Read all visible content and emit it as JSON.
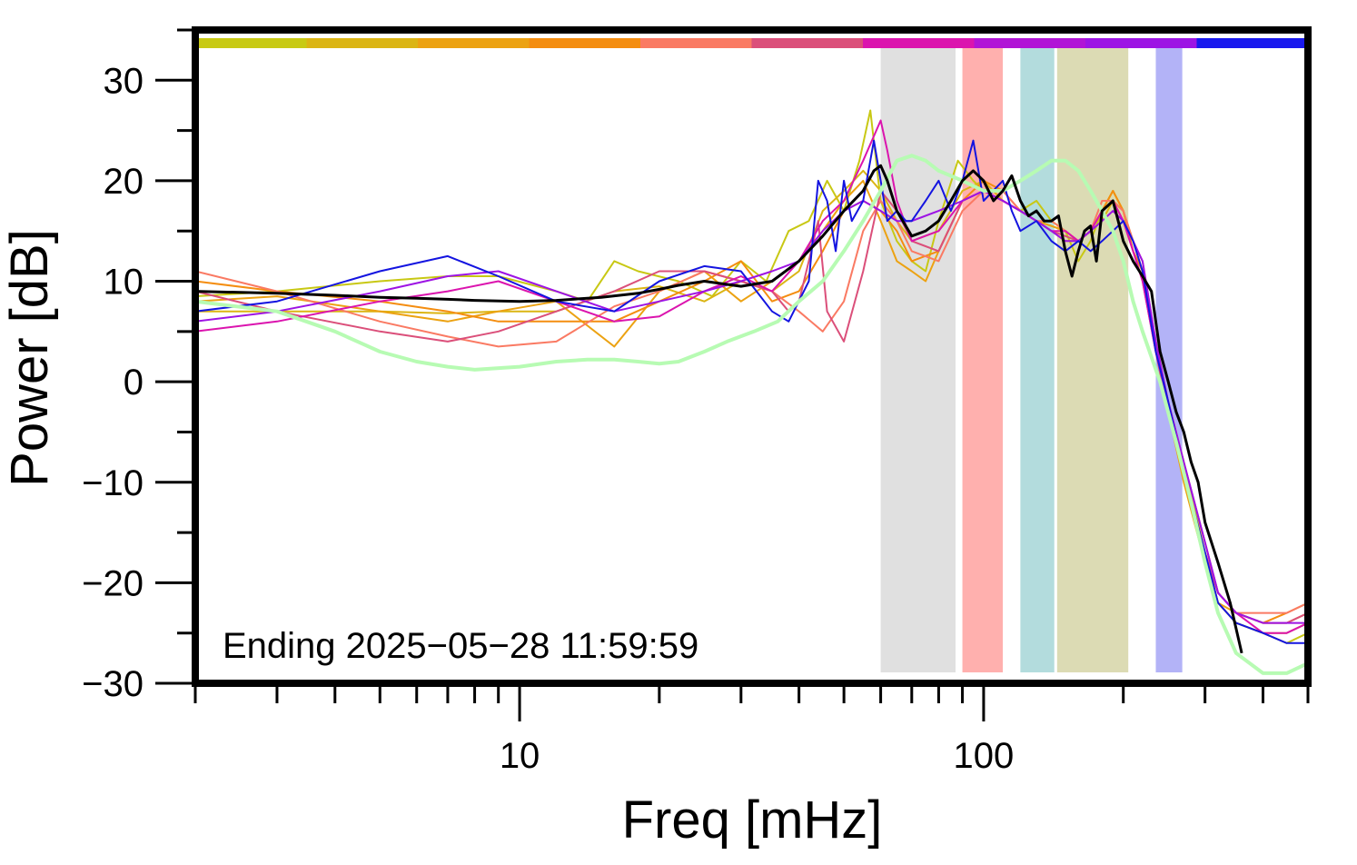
{
  "chart_data": {
    "type": "line",
    "xlabel": "Freq [mHz]",
    "ylabel": "Power [dB]",
    "x_scale": "log",
    "xlim": [
      2,
      500
    ],
    "ylim": [
      -30,
      35
    ],
    "x_tick_labels": [
      {
        "value": 10,
        "label": "10"
      },
      {
        "value": 100,
        "label": "100"
      }
    ],
    "y_tick_labels": [
      {
        "value": 30,
        "label": "30"
      },
      {
        "value": 20,
        "label": "20"
      },
      {
        "value": 10,
        "label": "10"
      },
      {
        "value": 0,
        "label": "0"
      },
      {
        "value": -10,
        "label": "−10"
      },
      {
        "value": -20,
        "label": "−20"
      },
      {
        "value": -30,
        "label": "−30"
      }
    ],
    "grid": false,
    "annotation": "Ending 2025−05−28 11:59:59",
    "bands": [
      {
        "x0": 60,
        "x1": 87,
        "color": "#e0e0e0"
      },
      {
        "x0": 90,
        "x1": 110,
        "color": "#ffb0ae"
      },
      {
        "x0": 120,
        "x1": 142,
        "color": "#b3dcdd"
      },
      {
        "x0": 144,
        "x1": 205,
        "color": "#dcdbb4"
      },
      {
        "x0": 235,
        "x1": 268,
        "color": "#b3b3f7"
      }
    ],
    "top_strip_colors": [
      "#c8ca14",
      "#dbb514",
      "#eca212",
      "#f48d10",
      "#fa7a63",
      "#db4f7a",
      "#db14ae",
      "#b114d6",
      "#9d14e4",
      "#1919ee"
    ],
    "series": [
      {
        "color": "#c8c814",
        "width": 2,
        "x": [
          2,
          3,
          5,
          7,
          9,
          12,
          14,
          16,
          18,
          22,
          26,
          30,
          34,
          38,
          42,
          46,
          50,
          54,
          57,
          60,
          65,
          70,
          75,
          80,
          88,
          95,
          100,
          110,
          120,
          130,
          140,
          150,
          160,
          170,
          180,
          190,
          200,
          210,
          220,
          235,
          250,
          270,
          300,
          320,
          350,
          400,
          450,
          500
        ],
        "y": [
          8.5,
          9,
          10,
          10.5,
          10.5,
          9,
          8,
          12,
          11,
          10,
          8.5,
          12,
          10,
          15,
          16,
          20,
          17,
          22,
          27,
          18,
          14,
          12,
          11,
          16,
          22,
          20,
          19,
          18,
          17,
          18,
          16,
          15,
          12,
          14,
          17,
          19,
          17,
          13,
          11,
          4,
          -2,
          -8,
          -17,
          -22,
          -24,
          -25,
          -26,
          -25
        ]
      },
      {
        "color": "#dbb514",
        "width": 2,
        "x": [
          2,
          3,
          5,
          7,
          9,
          12,
          16,
          20,
          25,
          30,
          35,
          40,
          45,
          50,
          55,
          60,
          65,
          70,
          80,
          90,
          100,
          110,
          120,
          130,
          140,
          150,
          160,
          170,
          180,
          190,
          200,
          210,
          220,
          235,
          250,
          270,
          300,
          320,
          350,
          400,
          450,
          500
        ],
        "y": [
          7,
          7,
          7,
          6.8,
          7,
          7,
          9,
          9.5,
          8,
          10,
          9,
          11,
          17,
          19,
          21,
          19,
          16,
          14,
          15,
          19,
          20,
          18,
          17,
          16,
          15.5,
          15,
          14,
          15,
          16,
          18,
          17,
          14,
          11,
          4,
          -3,
          -9,
          -17,
          -22,
          -24,
          -25,
          -25,
          -24
        ]
      },
      {
        "color": "#eca212",
        "width": 2,
        "x": [
          2,
          3,
          5,
          7,
          9,
          12,
          16,
          20,
          25,
          30,
          35,
          40,
          45,
          50,
          55,
          60,
          65,
          70,
          75,
          80,
          90,
          100,
          110,
          120,
          130,
          140,
          150,
          160,
          170,
          180,
          190,
          200,
          210,
          220,
          235,
          250,
          270,
          300,
          320,
          350,
          400,
          450,
          500
        ],
        "y": [
          8,
          8.5,
          7,
          6,
          7,
          8,
          3.5,
          9,
          11,
          8,
          10,
          12,
          15,
          18,
          20,
          16,
          12,
          11,
          10,
          13,
          18,
          19,
          18,
          17,
          16,
          15.5,
          15,
          14,
          15,
          17,
          18,
          17,
          13,
          11,
          3,
          -3,
          -10,
          -18,
          -22,
          -23,
          -24,
          -24,
          -23
        ]
      },
      {
        "color": "#f48d10",
        "width": 2,
        "x": [
          2,
          3,
          5,
          7,
          9,
          12,
          16,
          20,
          25,
          30,
          35,
          40,
          45,
          50,
          55,
          60,
          65,
          70,
          80,
          90,
          100,
          110,
          120,
          130,
          140,
          150,
          160,
          170,
          180,
          190,
          200,
          210,
          220,
          235,
          250,
          270,
          300,
          320,
          350,
          400,
          450,
          500
        ],
        "y": [
          10,
          9,
          8,
          7,
          6,
          6,
          6,
          8,
          10,
          12,
          8,
          9,
          13,
          17,
          18,
          17,
          15,
          12,
          13,
          18,
          20,
          19,
          17,
          16,
          15,
          14,
          14,
          15,
          17,
          19,
          17,
          13,
          11,
          4,
          -3,
          -9,
          -17,
          -21,
          -23,
          -24,
          -23,
          -22
        ]
      },
      {
        "color": "#fa7a63",
        "width": 2,
        "x": [
          2,
          3,
          5,
          7,
          9,
          12,
          16,
          20,
          25,
          30,
          35,
          40,
          45,
          50,
          55,
          60,
          65,
          70,
          80,
          90,
          100,
          110,
          120,
          130,
          140,
          150,
          160,
          170,
          180,
          190,
          200,
          210,
          220,
          235,
          250,
          270,
          300,
          320,
          350,
          400,
          450,
          500
        ],
        "y": [
          11,
          9,
          6,
          4.5,
          3.5,
          4,
          7.5,
          9,
          11,
          10,
          9,
          7,
          5,
          8,
          15,
          18,
          16,
          13,
          12,
          17,
          19,
          19,
          17,
          16,
          16,
          15,
          14,
          15,
          18,
          18,
          17,
          14,
          12,
          4,
          -2,
          -8,
          -16,
          -21,
          -23,
          -23,
          -23,
          -22
        ]
      },
      {
        "color": "#db4f7a",
        "width": 2,
        "x": [
          2,
          3,
          5,
          7,
          9,
          12,
          16,
          20,
          25,
          30,
          35,
          38,
          40,
          42,
          44,
          46,
          50,
          55,
          60,
          65,
          70,
          80,
          90,
          100,
          110,
          120,
          130,
          140,
          150,
          160,
          170,
          180,
          190,
          200,
          210,
          220,
          235,
          250,
          270,
          300,
          320,
          350,
          400,
          450,
          500
        ],
        "y": [
          9,
          7,
          5,
          4,
          5,
          7,
          9,
          11,
          11,
          10,
          9,
          7,
          8,
          12,
          16,
          7,
          4,
          11,
          19,
          17,
          14,
          13,
          18,
          19,
          18,
          17,
          16,
          15,
          14.5,
          14,
          15,
          17,
          18,
          16,
          13,
          10,
          3,
          -3,
          -9,
          -17,
          -21,
          -23,
          -24,
          -24,
          -23
        ]
      },
      {
        "color": "#db14ae",
        "width": 2,
        "x": [
          2,
          3,
          5,
          7,
          9,
          12,
          16,
          20,
          25,
          30,
          35,
          40,
          45,
          50,
          55,
          60,
          62,
          65,
          70,
          80,
          90,
          100,
          110,
          120,
          130,
          140,
          150,
          160,
          170,
          180,
          190,
          200,
          210,
          220,
          235,
          250,
          270,
          300,
          320,
          350,
          400,
          450,
          500
        ],
        "y": [
          5,
          6,
          8,
          9,
          10,
          8,
          6,
          6.5,
          9,
          10.5,
          9,
          12,
          16,
          18,
          22,
          26,
          23,
          18,
          14,
          15,
          18,
          19,
          18,
          17,
          16,
          15,
          15,
          14,
          15,
          17,
          18,
          16,
          13,
          10,
          3,
          -2,
          -8,
          -16,
          -21,
          -23,
          -25,
          -25,
          -24
        ]
      },
      {
        "color": "#9d14e4",
        "width": 2,
        "x": [
          2,
          3,
          5,
          7,
          9,
          12,
          16,
          20,
          25,
          30,
          35,
          40,
          45,
          50,
          55,
          60,
          65,
          70,
          80,
          90,
          100,
          110,
          120,
          130,
          140,
          150,
          160,
          170,
          180,
          190,
          200,
          210,
          220,
          235,
          250,
          270,
          300,
          320,
          350,
          400,
          450,
          500
        ],
        "y": [
          6,
          7,
          9,
          10.5,
          11,
          9,
          7,
          8,
          9,
          10,
          11,
          12,
          15,
          17,
          18,
          17,
          16,
          16,
          17,
          18,
          19,
          18,
          17,
          16,
          15,
          14,
          14,
          15,
          16,
          17,
          16,
          14,
          12,
          4,
          -2,
          -8,
          -16,
          -21,
          -23,
          -24,
          -24,
          -24
        ]
      },
      {
        "color": "#1414e0",
        "width": 2,
        "x": [
          2,
          3,
          5,
          7,
          9,
          12,
          16,
          20,
          25,
          30,
          35,
          38,
          42,
          44,
          46,
          48,
          50,
          52,
          55,
          58,
          60,
          62,
          65,
          68,
          70,
          75,
          80,
          85,
          90,
          95,
          100,
          110,
          115,
          120,
          130,
          140,
          150,
          160,
          170,
          180,
          190,
          200,
          210,
          220,
          235,
          250,
          270,
          300,
          320,
          350,
          400,
          450,
          500
        ],
        "y": [
          7,
          8,
          11,
          12.5,
          10.5,
          8,
          7,
          10,
          11.5,
          11,
          7,
          6,
          10,
          20,
          18,
          13,
          20,
          16,
          18,
          24,
          20,
          16,
          17,
          16,
          16,
          18,
          20,
          17,
          20,
          24,
          18,
          20,
          17,
          15,
          16,
          14,
          13,
          14,
          13,
          14,
          15,
          16,
          14,
          11,
          3,
          -2,
          -9,
          -17,
          -22,
          -24,
          -25,
          -26,
          -26
        ]
      },
      {
        "color": "#b7fbb3",
        "width": 4,
        "x": [
          2,
          3,
          4,
          5,
          6,
          7,
          8,
          10,
          12,
          14,
          16,
          18,
          20,
          22,
          25,
          28,
          32,
          36,
          40,
          45,
          50,
          55,
          60,
          65,
          70,
          75,
          80,
          90,
          100,
          110,
          120,
          130,
          140,
          150,
          160,
          170,
          180,
          190,
          200,
          210,
          220,
          240,
          260,
          280,
          300,
          320,
          350,
          400,
          450,
          500
        ],
        "y": [
          8,
          7,
          5,
          3,
          2,
          1.5,
          1.2,
          1.5,
          2,
          2.2,
          2.2,
          2,
          1.8,
          2,
          3,
          4,
          5,
          6,
          8,
          10,
          13,
          16,
          19,
          22,
          22.5,
          22,
          21,
          20,
          19,
          19,
          20,
          21,
          22,
          22,
          21,
          19,
          17,
          15,
          12,
          8,
          5,
          0,
          -6,
          -12,
          -18,
          -23,
          -27,
          -29,
          -29,
          -28
        ]
      },
      {
        "color": "#000000",
        "width": 3,
        "x": [
          2,
          3,
          4,
          5,
          6,
          7,
          8,
          10,
          12,
          15,
          18,
          20,
          22,
          25,
          30,
          35,
          40,
          45,
          50,
          55,
          58,
          60,
          62,
          65,
          70,
          75,
          80,
          85,
          90,
          95,
          100,
          105,
          110,
          115,
          120,
          125,
          130,
          135,
          140,
          145,
          150,
          155,
          160,
          165,
          170,
          175,
          180,
          185,
          190,
          195,
          200,
          210,
          220,
          230,
          240,
          250,
          260,
          270,
          280,
          290,
          300,
          320,
          340,
          360
        ],
        "y": [
          9,
          8.8,
          8.6,
          8.4,
          8.3,
          8.2,
          8.1,
          8,
          8.1,
          8.4,
          8.8,
          9.2,
          9.6,
          10,
          9.5,
          10,
          12,
          14.5,
          17,
          19,
          21,
          21.5,
          20,
          17,
          14.5,
          15,
          16,
          18,
          20,
          21,
          20,
          18,
          19,
          20.5,
          18,
          16.5,
          17,
          16,
          16,
          16.5,
          13,
          10.5,
          13,
          15,
          15.5,
          12,
          17,
          17.5,
          18,
          16,
          14,
          12,
          10.5,
          9,
          3,
          0,
          -3,
          -5,
          -8,
          -10,
          -14,
          -18,
          -22,
          -27
        ]
      }
    ]
  }
}
